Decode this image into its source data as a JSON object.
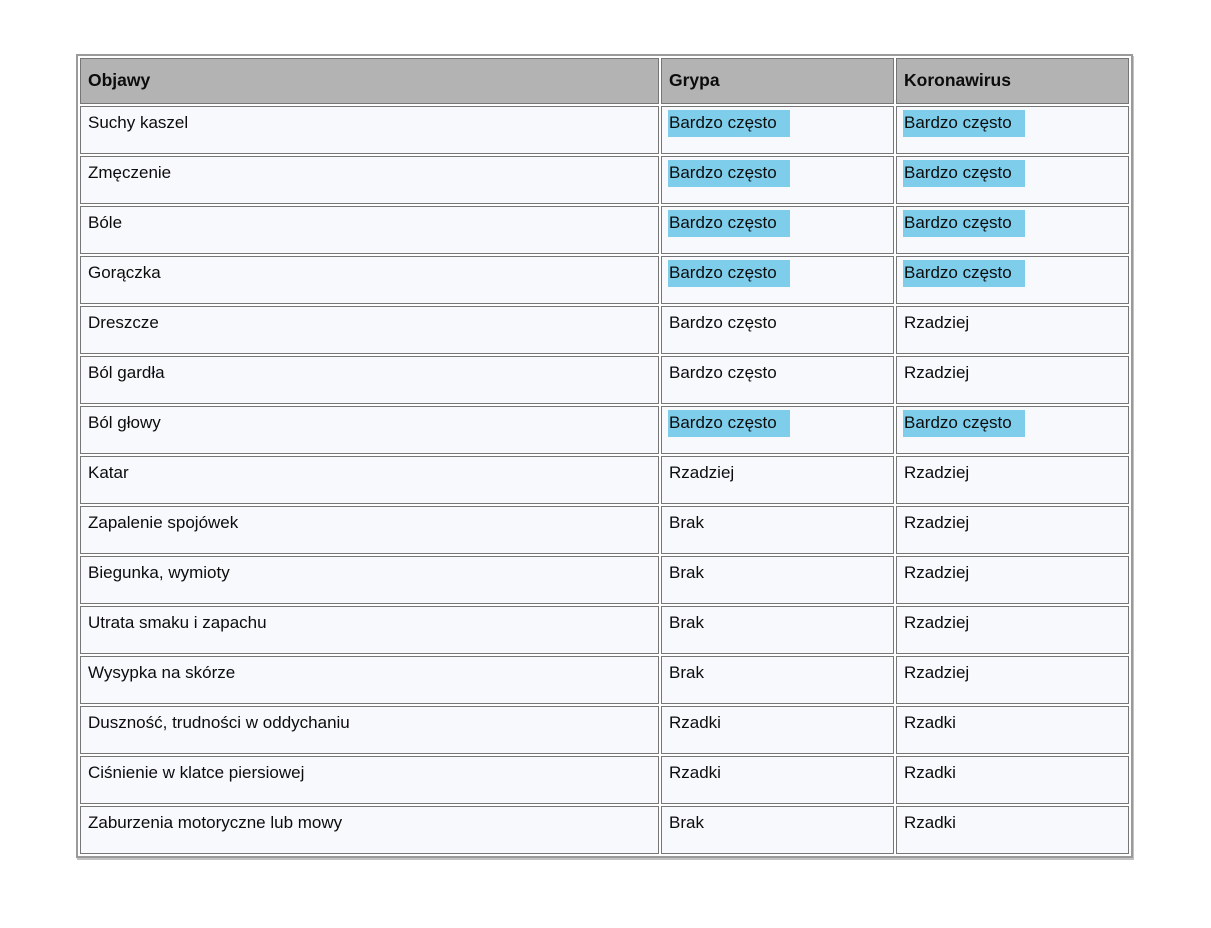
{
  "colors": {
    "header_bg": "#b3b3b3",
    "cell_bg": "#f7f9fc",
    "highlight": "#7dcdeb",
    "border": "#767676",
    "text": "#0c0c0c"
  },
  "table": {
    "columns": [
      "Objawy",
      "Grypa",
      "Koronawirus"
    ],
    "rows": [
      {
        "objawy": "Suchy kaszel",
        "grypa": {
          "text": "Bardzo często",
          "highlight": true
        },
        "koronawirus": {
          "text": "Bardzo często",
          "highlight": true
        }
      },
      {
        "objawy": "Zmęczenie",
        "grypa": {
          "text": "Bardzo często",
          "highlight": true
        },
        "koronawirus": {
          "text": "Bardzo często",
          "highlight": true
        }
      },
      {
        "objawy": "Bóle",
        "grypa": {
          "text": "Bardzo często",
          "highlight": true
        },
        "koronawirus": {
          "text": "Bardzo często",
          "highlight": true
        }
      },
      {
        "objawy": "Gorączka",
        "grypa": {
          "text": "Bardzo często",
          "highlight": true
        },
        "koronawirus": {
          "text": "Bardzo często",
          "highlight": true
        }
      },
      {
        "objawy": "Dreszcze",
        "grypa": {
          "text": "Bardzo często",
          "highlight": false
        },
        "koronawirus": {
          "text": "Rzadziej",
          "highlight": false
        }
      },
      {
        "objawy": "Ból gardła",
        "grypa": {
          "text": "Bardzo często",
          "highlight": false
        },
        "koronawirus": {
          "text": "Rzadziej",
          "highlight": false
        }
      },
      {
        "objawy": "Ból głowy",
        "grypa": {
          "text": "Bardzo często",
          "highlight": true
        },
        "koronawirus": {
          "text": "Bardzo często",
          "highlight": true
        }
      },
      {
        "objawy": "Katar",
        "grypa": {
          "text": "Rzadziej",
          "highlight": false
        },
        "koronawirus": {
          "text": "Rzadziej",
          "highlight": false
        }
      },
      {
        "objawy": "Zapalenie spojówek",
        "grypa": {
          "text": "Brak",
          "highlight": false
        },
        "koronawirus": {
          "text": "Rzadziej",
          "highlight": false
        }
      },
      {
        "objawy": "Biegunka, wymioty",
        "grypa": {
          "text": "Brak",
          "highlight": false
        },
        "koronawirus": {
          "text": "Rzadziej",
          "highlight": false
        }
      },
      {
        "objawy": "Utrata smaku i zapachu",
        "grypa": {
          "text": "Brak",
          "highlight": false
        },
        "koronawirus": {
          "text": "Rzadziej",
          "highlight": false
        }
      },
      {
        "objawy": "Wysypka na skórze",
        "grypa": {
          "text": "Brak",
          "highlight": false
        },
        "koronawirus": {
          "text": "Rzadziej",
          "highlight": false
        }
      },
      {
        "objawy": "Duszność, trudności w oddychaniu",
        "grypa": {
          "text": "Rzadki",
          "highlight": false
        },
        "koronawirus": {
          "text": "Rzadki",
          "highlight": false
        }
      },
      {
        "objawy": "Ciśnienie w klatce piersiowej",
        "grypa": {
          "text": "Rzadki",
          "highlight": false
        },
        "koronawirus": {
          "text": "Rzadki",
          "highlight": false
        }
      },
      {
        "objawy": "Zaburzenia motoryczne lub mowy",
        "grypa": {
          "text": "Brak",
          "highlight": false
        },
        "koronawirus": {
          "text": "Rzadki",
          "highlight": false
        }
      }
    ]
  }
}
